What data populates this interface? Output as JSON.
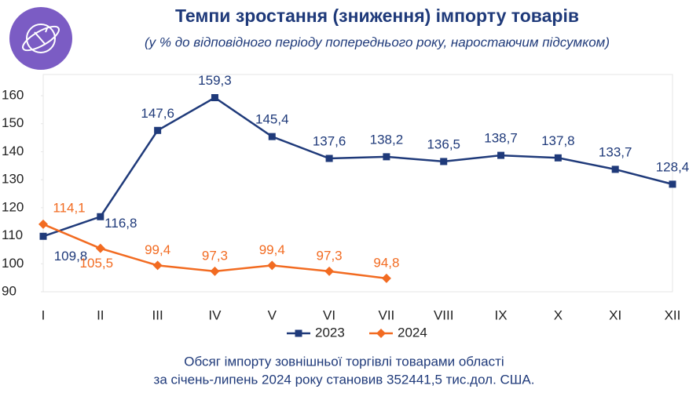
{
  "chart_data": {
    "type": "line",
    "title": "Темпи зростання (зниження) імпорту товарів",
    "subtitle": "(у % до відповідного періоду попереднього року, наростаючим підсумком)",
    "categories": [
      "I",
      "II",
      "III",
      "IV",
      "V",
      "VI",
      "VII",
      "VIII",
      "IX",
      "X",
      "XI",
      "XII"
    ],
    "series": [
      {
        "name": "2023",
        "color": "#1f3a7a",
        "marker": "square",
        "values": [
          109.8,
          116.8,
          147.6,
          159.3,
          145.4,
          137.6,
          138.2,
          136.5,
          138.7,
          137.8,
          133.7,
          128.4
        ],
        "value_labels": [
          "109,8",
          "116,8",
          "147,6",
          "159,3",
          "145,4",
          "137,6",
          "138,2",
          "136,5",
          "138,7",
          "137,8",
          "133,7",
          "128,4"
        ]
      },
      {
        "name": "2024",
        "color": "#f26b21",
        "marker": "diamond",
        "values": [
          114.1,
          105.5,
          99.4,
          97.3,
          99.4,
          97.3,
          94.8,
          null,
          null,
          null,
          null,
          null
        ],
        "value_labels": [
          "114,1",
          "105,5",
          "99,4",
          "97,3",
          "99,4",
          "97,3",
          "94,8",
          null,
          null,
          null,
          null,
          null
        ]
      }
    ],
    "ylim": [
      90,
      160
    ],
    "yticks": [
      90,
      100,
      110,
      120,
      130,
      140,
      150,
      160
    ],
    "footnote": [
      "Обсяг імпорту зовнішньої торгівлі товарами області",
      "за січень-липень 2024 року становив 352441,5 тис.дол. США."
    ]
  }
}
